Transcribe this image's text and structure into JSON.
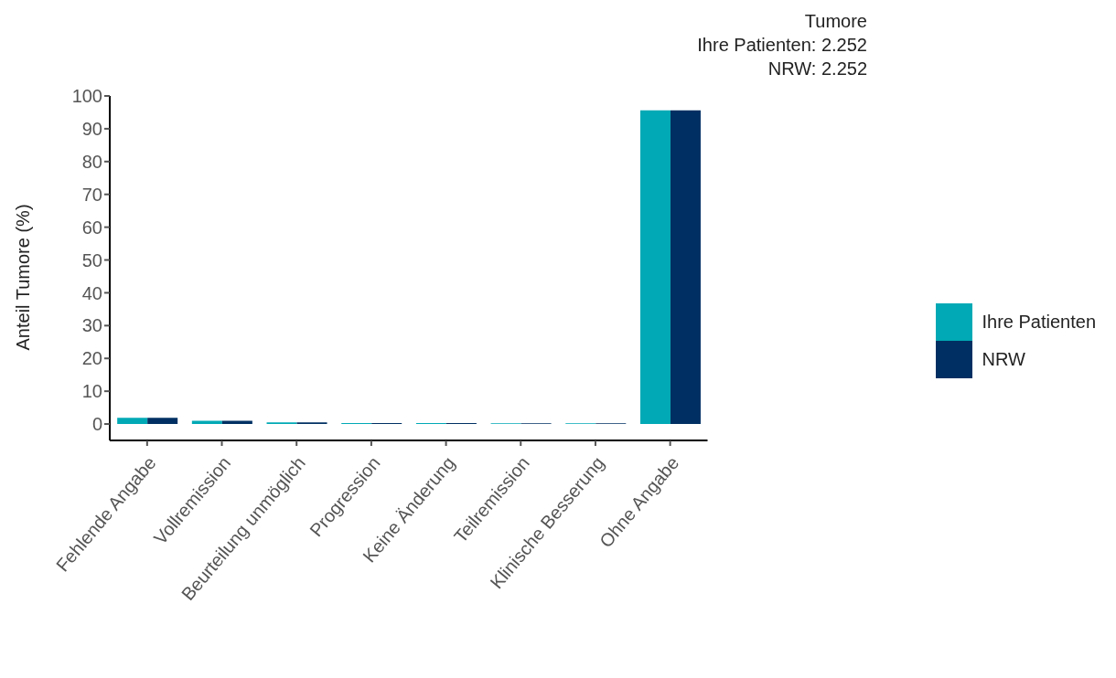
{
  "chart_data": {
    "type": "bar",
    "title": "Tumore",
    "annotations": [
      "Ihre Patienten: 2.252",
      "NRW: 2.252"
    ],
    "ylabel": "Anteil Tumore (%)",
    "categories": [
      "Fehlende Angabe",
      "Vollremission",
      "Beurteilung unmöglich",
      "Progression",
      "Keine Änderung",
      "Teilremission",
      "Klinische Besserung",
      "Ohne Angabe"
    ],
    "series": [
      {
        "name": "Ihre Patienten",
        "color": "#00a9b5",
        "values": [
          1.9,
          1.0,
          0.5,
          0.3,
          0.3,
          0.2,
          0.2,
          95.6
        ]
      },
      {
        "name": "NRW",
        "color": "#003063",
        "values": [
          1.9,
          1.0,
          0.5,
          0.3,
          0.3,
          0.2,
          0.2,
          95.6
        ]
      }
    ],
    "ylim": [
      -5,
      100
    ],
    "yticks": [
      0,
      10,
      20,
      30,
      40,
      50,
      60,
      70,
      80,
      90,
      100
    ],
    "grid": false,
    "legend": "right"
  }
}
